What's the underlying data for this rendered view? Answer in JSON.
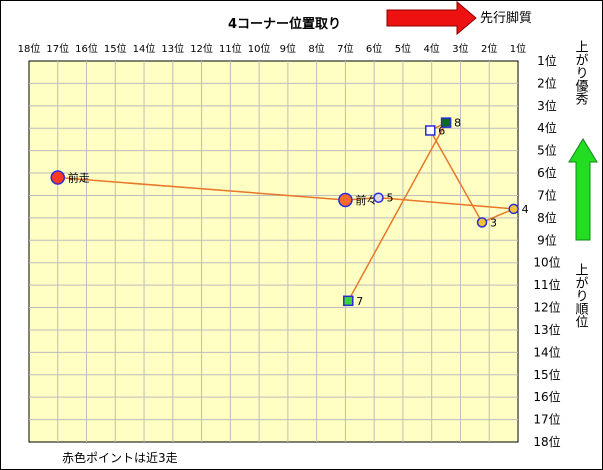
{
  "chart_data": {
    "type": "scatter",
    "title": "4コーナー位置取り",
    "x_axis": {
      "label": "先行脚質",
      "range": [
        18,
        1
      ],
      "ticks": [
        "18位",
        "17位",
        "16位",
        "15位",
        "14位",
        "13位",
        "12位",
        "11位",
        "10位",
        "9位",
        "8位",
        "7位",
        "6位",
        "5位",
        "4位",
        "3位",
        "2位",
        "1位"
      ]
    },
    "y_axis": {
      "label_top": "上がり優秀",
      "label_bottom": "上がり順位",
      "range": [
        1,
        18
      ],
      "ticks": [
        "1位",
        "2位",
        "3位",
        "4位",
        "5位",
        "6位",
        "7位",
        "8位",
        "9位",
        "10位",
        "11位",
        "12位",
        "13位",
        "14位",
        "15位",
        "16位",
        "17位",
        "18位"
      ]
    },
    "grid": true,
    "series": [
      {
        "points": [
          {
            "label": "前走",
            "x": 17,
            "y": 6.2,
            "marker": "circle",
            "fill": "#ff3b1f",
            "stroke": "#2b2bd6"
          },
          {
            "label": "前々",
            "x": 7.0,
            "y": 7.2,
            "marker": "circle",
            "fill": "#ff6a2a",
            "stroke": "#2b2bd6"
          },
          {
            "label": "5",
            "x": 5.85,
            "y": 7.1,
            "marker": "circle",
            "fill": "#dcdcdc",
            "stroke": "#2b2bd6"
          },
          {
            "label": "4",
            "x": 1.15,
            "y": 7.6,
            "marker": "circle",
            "fill": "#f2c23a",
            "stroke": "#2b2bd6"
          },
          {
            "label": "3",
            "x": 2.25,
            "y": 8.2,
            "marker": "circle",
            "fill": "#f2c23a",
            "stroke": "#2b2bd6"
          },
          {
            "label": "6",
            "x": 4.05,
            "y": 4.1,
            "marker": "square",
            "fill": "#ffffff",
            "stroke": "#2b2bd6"
          },
          {
            "label": "8",
            "x": 3.5,
            "y": 3.75,
            "marker": "square",
            "fill": "#0d6e1a",
            "stroke": "#2b2bd6"
          },
          {
            "label": "7",
            "x": 6.9,
            "y": 11.7,
            "marker": "square",
            "fill": "#3cd43c",
            "stroke": "#2b2bd6"
          }
        ],
        "line_color": "#e8772a"
      }
    ],
    "footnote": "赤色ポイントは近3走"
  },
  "colors": {
    "plot_bg": "#ffffc4",
    "grid": "#bdbdbd",
    "arrow_red": "#ee1111",
    "arrow_green": "#22dd22"
  }
}
